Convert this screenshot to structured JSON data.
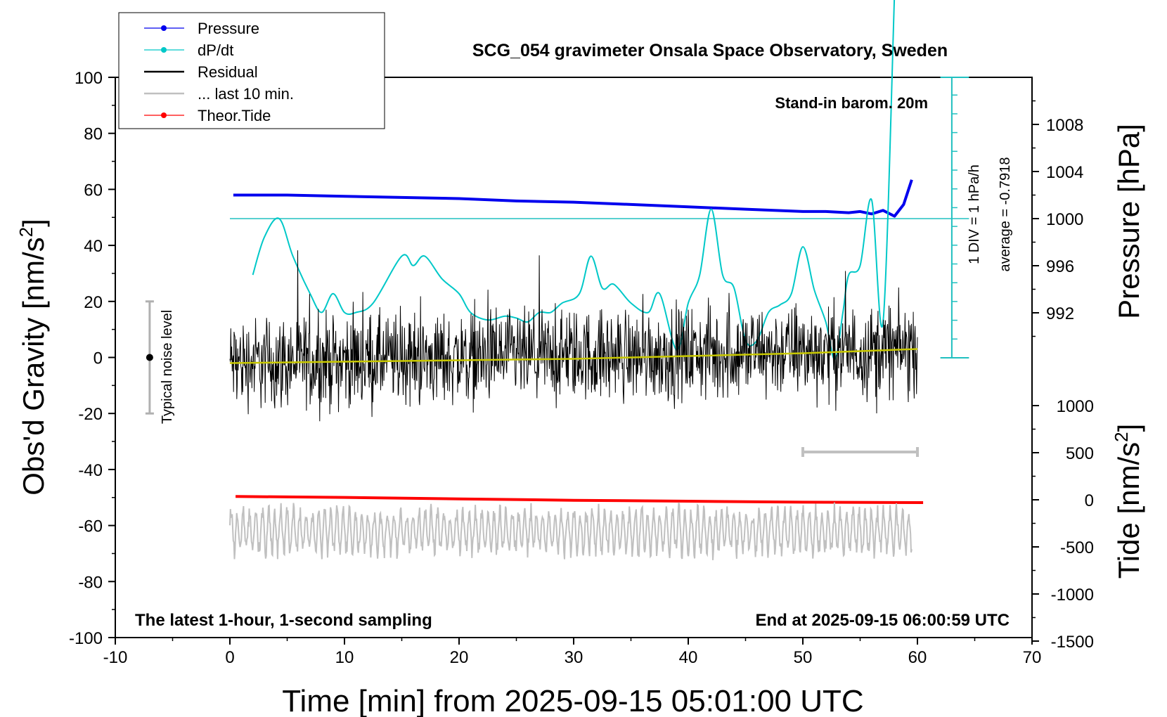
{
  "chart_data": {
    "type": "line",
    "title": "SCG_054 gravimeter Onsala Space Observatory, Sweden",
    "xlabel": "Time [min] from 2025-09-15 05:01:00 UTC",
    "xlim": [
      -10,
      70
    ],
    "xticks": [
      -10,
      0,
      10,
      20,
      30,
      40,
      50,
      60,
      70
    ],
    "left_axis": {
      "label": "Obs'd Gravity [nm/s",
      "label_sup": "2",
      "label_end": "]",
      "ylim": [
        -100,
        100
      ],
      "ticks": [
        -100,
        -80,
        -60,
        -40,
        -20,
        0,
        20,
        40,
        60,
        80,
        100
      ]
    },
    "pressure_axis": {
      "label": "Pressure [hPa]",
      "ticks": [
        992,
        996,
        1000,
        1004,
        1008
      ],
      "range": [
        988,
        1011
      ]
    },
    "tide_axis": {
      "label": "Tide [nm/s",
      "label_sup": "2",
      "label_end": "]",
      "ticks": [
        -1500,
        -1000,
        -500,
        0,
        500,
        1000
      ],
      "range": [
        -1500,
        1000
      ]
    },
    "dpdt_scale": {
      "div_label": "1 DIV = 1 hPa/h",
      "average_label": "average = -0.7918",
      "divisions": 12
    },
    "legend": {
      "placement": "top-left",
      "entries": [
        {
          "label": "Pressure",
          "color": "#0000ee",
          "marker": "dot"
        },
        {
          "label": "dP/dt",
          "color": "#00c8c8",
          "marker": "dot"
        },
        {
          "label": "Residual",
          "color": "#000000",
          "marker": "line"
        },
        {
          "label": "... last 10 min.",
          "color": "#c0c0c0",
          "marker": "line"
        },
        {
          "label": "Theor.Tide",
          "color": "#ff0000",
          "marker": "dot"
        }
      ]
    },
    "annotations": {
      "barometer": "Stand-in barom. 20m",
      "sampling": "The latest 1-hour, 1-second sampling",
      "end_time": "End at 2025-09-15 06:00:59 UTC",
      "noise_label": "Typical noise level",
      "noise_level": {
        "x": -7,
        "center": 0,
        "low": -20,
        "high": 20
      },
      "last10_bar": {
        "x_start": 50,
        "x_end": 60
      }
    },
    "series": [
      {
        "name": "Pressure",
        "axis": "pressure",
        "color": "#0000ee",
        "x": [
          0.3,
          5,
          10,
          15,
          20,
          25,
          30,
          35,
          40,
          45,
          50,
          52,
          54,
          55,
          56,
          57,
          58,
          58.8,
          59.5
        ],
        "y": [
          1002.0,
          1002.0,
          1001.9,
          1001.8,
          1001.7,
          1001.5,
          1001.4,
          1001.2,
          1001.0,
          1000.8,
          1000.6,
          1000.6,
          1000.5,
          1000.6,
          1000.4,
          1000.7,
          1000.2,
          1001.2,
          1003.3
        ]
      },
      {
        "name": "dP/dt",
        "axis": "dpdt",
        "color": "#00c8c8",
        "x": [
          2,
          3,
          4.3,
          5.5,
          7,
          8,
          9,
          10,
          11,
          12.5,
          15,
          16,
          17,
          18.5,
          20,
          21,
          22.5,
          24,
          25,
          26,
          27,
          28,
          29,
          30.5,
          31.5,
          32.5,
          33.5,
          35,
          36.5,
          37.5,
          39,
          40,
          41,
          42,
          43,
          44,
          45,
          46,
          47,
          48,
          49,
          50,
          51,
          52,
          52.8,
          53.5,
          54,
          55,
          56,
          57,
          58
        ],
        "y": [
          -3,
          -1,
          0,
          -2,
          -4,
          -5,
          -4,
          -5,
          -5,
          -4.5,
          -2,
          -2.5,
          -2,
          -3.2,
          -4,
          -5,
          -5.4,
          -5.2,
          -5.3,
          -5.5,
          -5,
          -5,
          -4.5,
          -4,
          -2,
          -3.7,
          -3.5,
          -4.5,
          -5,
          -4,
          -7,
          -4.5,
          -3,
          0.5,
          -3,
          -3.7,
          -6.5,
          -6.5,
          -5,
          -4.6,
          -4,
          -1.5,
          -3.8,
          -5.5,
          -7.5,
          -5,
          -3,
          -2.5,
          1,
          -5.5,
          12
        ]
      },
      {
        "name": "Residual",
        "axis": "gravity",
        "color": "#000000",
        "x": [
          0,
          60
        ],
        "y_mean": [
          -2,
          3
        ],
        "noise_amplitude": 8,
        "note": "1-second sampled noise"
      },
      {
        "name": "Residual smoothed",
        "axis": "gravity",
        "color": "#c8c800",
        "x": [
          0,
          10,
          20,
          30,
          40,
          50,
          60
        ],
        "y": [
          -2,
          -1.5,
          -1,
          -0.5,
          0.5,
          1.5,
          3
        ]
      },
      {
        "name": "Theor.Tide",
        "axis": "tide",
        "color": "#ff0000",
        "x": [
          0.5,
          10,
          20,
          30,
          40,
          50,
          60.5
        ],
        "y": [
          35,
          25,
          10,
          -5,
          -15,
          -25,
          -30
        ]
      },
      {
        "name": "... last 10 min.",
        "axis": "gravity_offset",
        "color": "#c0c0c0",
        "offset": -62,
        "x": [
          0,
          59.5
        ],
        "amplitude": 8
      }
    ]
  }
}
